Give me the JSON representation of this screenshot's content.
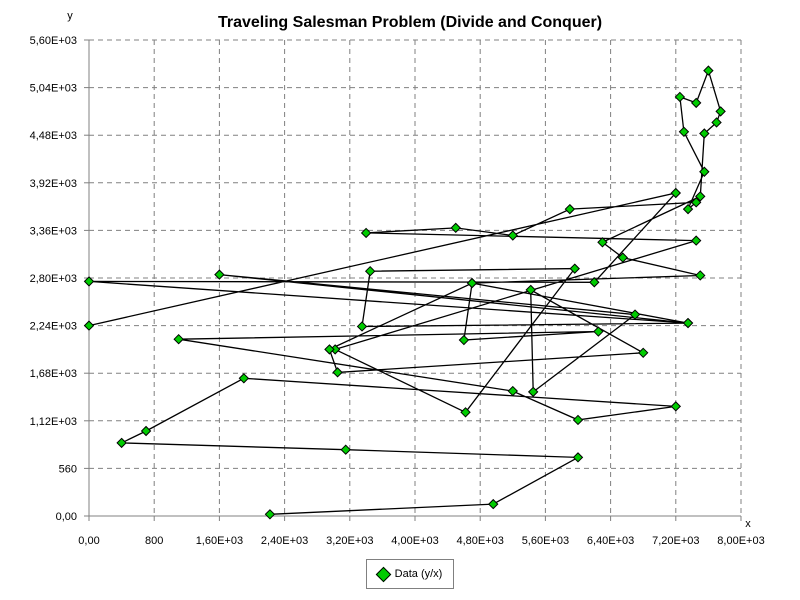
{
  "chart_data": {
    "type": "line",
    "title": "Traveling Salesman Problem (Divide and Conquer)",
    "xlabel": "x",
    "ylabel": "y",
    "xlim": [
      0,
      8000
    ],
    "ylim": [
      0,
      5600
    ],
    "grid": true,
    "x_ticks": [
      {
        "value": 0,
        "label": "0,00"
      },
      {
        "value": 800,
        "label": "800"
      },
      {
        "value": 1600,
        "label": "1,60E+03"
      },
      {
        "value": 2400,
        "label": "2,40E+03"
      },
      {
        "value": 3200,
        "label": "3,20E+03"
      },
      {
        "value": 4000,
        "label": "4,00E+03"
      },
      {
        "value": 4800,
        "label": "4,80E+03"
      },
      {
        "value": 5600,
        "label": "5,60E+03"
      },
      {
        "value": 6400,
        "label": "6,40E+03"
      },
      {
        "value": 7200,
        "label": "7,20E+03"
      },
      {
        "value": 8000,
        "label": "8,00E+03"
      }
    ],
    "y_ticks": [
      {
        "value": 0,
        "label": "0,00"
      },
      {
        "value": 560,
        "label": "560"
      },
      {
        "value": 1120,
        "label": "1,12E+03"
      },
      {
        "value": 1680,
        "label": "1,68E+03"
      },
      {
        "value": 2240,
        "label": "2,24E+03"
      },
      {
        "value": 2800,
        "label": "2,80E+03"
      },
      {
        "value": 3360,
        "label": "3,36E+03"
      },
      {
        "value": 3920,
        "label": "3,92E+03"
      },
      {
        "value": 4480,
        "label": "4,48E+03"
      },
      {
        "value": 5040,
        "label": "5,04E+03"
      },
      {
        "value": 5600,
        "label": "5,60E+03"
      }
    ],
    "legend": "bottom-center",
    "series": [
      {
        "name": "Data (y/x)",
        "color": "#00cc00",
        "marker": "diamond",
        "x": [
          2220,
          4960,
          6000,
          3150,
          400,
          700,
          1900,
          7200,
          6000,
          5200,
          1100,
          6250,
          4600,
          4700,
          7350,
          3350,
          3450,
          5960,
          4620,
          3020,
          7450,
          3400,
          4500,
          5200,
          5900,
          7450,
          7350,
          7550,
          7300,
          7250,
          7450,
          7600,
          7750,
          7700,
          7550,
          7500,
          6300,
          6550,
          7500,
          4700,
          2950,
          3050,
          6800,
          5420,
          5450,
          6700,
          1600,
          7350,
          0,
          6200,
          7200,
          0
        ],
        "y": [
          20,
          140,
          690,
          780,
          860,
          1000,
          1620,
          1290,
          1130,
          1470,
          2080,
          2170,
          2070,
          2740,
          2270,
          2230,
          2880,
          2910,
          1220,
          1960,
          3240,
          3330,
          3390,
          3300,
          3610,
          3690,
          3610,
          4050,
          4520,
          4930,
          4860,
          5240,
          4760,
          4630,
          4500,
          3760,
          3220,
          3040,
          2830,
          2740,
          1960,
          1690,
          1920,
          2660,
          1460,
          2370,
          2840,
          2270,
          2760,
          2750,
          3800,
          2240
        ]
      }
    ]
  }
}
